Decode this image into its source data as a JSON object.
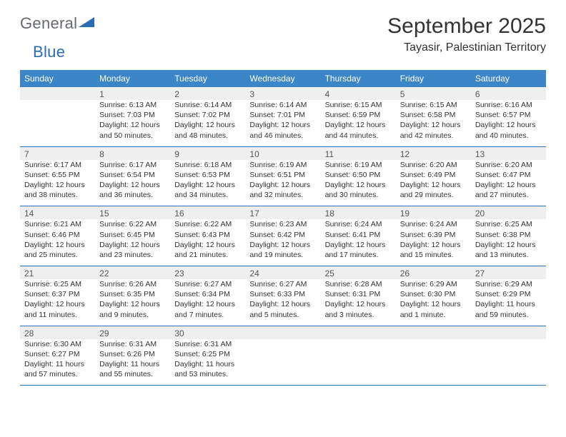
{
  "logo": {
    "part1": "General",
    "part2": "Blue"
  },
  "title": "September 2025",
  "location": "Tayasir, Palestinian Territory",
  "header_bg": "#3b86c7",
  "divider_color": "#2a6db5",
  "shaded_bg": "#efefef",
  "day_names": [
    "Sunday",
    "Monday",
    "Tuesday",
    "Wednesday",
    "Thursday",
    "Friday",
    "Saturday"
  ],
  "weeks": [
    [
      {
        "n": "",
        "sr": "",
        "ss": "",
        "dl": ""
      },
      {
        "n": "1",
        "sr": "6:13 AM",
        "ss": "7:03 PM",
        "dl": "12 hours and 50 minutes."
      },
      {
        "n": "2",
        "sr": "6:14 AM",
        "ss": "7:02 PM",
        "dl": "12 hours and 48 minutes."
      },
      {
        "n": "3",
        "sr": "6:14 AM",
        "ss": "7:01 PM",
        "dl": "12 hours and 46 minutes."
      },
      {
        "n": "4",
        "sr": "6:15 AM",
        "ss": "6:59 PM",
        "dl": "12 hours and 44 minutes."
      },
      {
        "n": "5",
        "sr": "6:15 AM",
        "ss": "6:58 PM",
        "dl": "12 hours and 42 minutes."
      },
      {
        "n": "6",
        "sr": "6:16 AM",
        "ss": "6:57 PM",
        "dl": "12 hours and 40 minutes."
      }
    ],
    [
      {
        "n": "7",
        "sr": "6:17 AM",
        "ss": "6:55 PM",
        "dl": "12 hours and 38 minutes."
      },
      {
        "n": "8",
        "sr": "6:17 AM",
        "ss": "6:54 PM",
        "dl": "12 hours and 36 minutes."
      },
      {
        "n": "9",
        "sr": "6:18 AM",
        "ss": "6:53 PM",
        "dl": "12 hours and 34 minutes."
      },
      {
        "n": "10",
        "sr": "6:19 AM",
        "ss": "6:51 PM",
        "dl": "12 hours and 32 minutes."
      },
      {
        "n": "11",
        "sr": "6:19 AM",
        "ss": "6:50 PM",
        "dl": "12 hours and 30 minutes."
      },
      {
        "n": "12",
        "sr": "6:20 AM",
        "ss": "6:49 PM",
        "dl": "12 hours and 29 minutes."
      },
      {
        "n": "13",
        "sr": "6:20 AM",
        "ss": "6:47 PM",
        "dl": "12 hours and 27 minutes."
      }
    ],
    [
      {
        "n": "14",
        "sr": "6:21 AM",
        "ss": "6:46 PM",
        "dl": "12 hours and 25 minutes."
      },
      {
        "n": "15",
        "sr": "6:22 AM",
        "ss": "6:45 PM",
        "dl": "12 hours and 23 minutes."
      },
      {
        "n": "16",
        "sr": "6:22 AM",
        "ss": "6:43 PM",
        "dl": "12 hours and 21 minutes."
      },
      {
        "n": "17",
        "sr": "6:23 AM",
        "ss": "6:42 PM",
        "dl": "12 hours and 19 minutes."
      },
      {
        "n": "18",
        "sr": "6:24 AM",
        "ss": "6:41 PM",
        "dl": "12 hours and 17 minutes."
      },
      {
        "n": "19",
        "sr": "6:24 AM",
        "ss": "6:39 PM",
        "dl": "12 hours and 15 minutes."
      },
      {
        "n": "20",
        "sr": "6:25 AM",
        "ss": "6:38 PM",
        "dl": "12 hours and 13 minutes."
      }
    ],
    [
      {
        "n": "21",
        "sr": "6:25 AM",
        "ss": "6:37 PM",
        "dl": "12 hours and 11 minutes."
      },
      {
        "n": "22",
        "sr": "6:26 AM",
        "ss": "6:35 PM",
        "dl": "12 hours and 9 minutes."
      },
      {
        "n": "23",
        "sr": "6:27 AM",
        "ss": "6:34 PM",
        "dl": "12 hours and 7 minutes."
      },
      {
        "n": "24",
        "sr": "6:27 AM",
        "ss": "6:33 PM",
        "dl": "12 hours and 5 minutes."
      },
      {
        "n": "25",
        "sr": "6:28 AM",
        "ss": "6:31 PM",
        "dl": "12 hours and 3 minutes."
      },
      {
        "n": "26",
        "sr": "6:29 AM",
        "ss": "6:30 PM",
        "dl": "12 hours and 1 minute."
      },
      {
        "n": "27",
        "sr": "6:29 AM",
        "ss": "6:29 PM",
        "dl": "11 hours and 59 minutes."
      }
    ],
    [
      {
        "n": "28",
        "sr": "6:30 AM",
        "ss": "6:27 PM",
        "dl": "11 hours and 57 minutes."
      },
      {
        "n": "29",
        "sr": "6:31 AM",
        "ss": "6:26 PM",
        "dl": "11 hours and 55 minutes."
      },
      {
        "n": "30",
        "sr": "6:31 AM",
        "ss": "6:25 PM",
        "dl": "11 hours and 53 minutes."
      },
      {
        "n": "",
        "sr": "",
        "ss": "",
        "dl": ""
      },
      {
        "n": "",
        "sr": "",
        "ss": "",
        "dl": ""
      },
      {
        "n": "",
        "sr": "",
        "ss": "",
        "dl": ""
      },
      {
        "n": "",
        "sr": "",
        "ss": "",
        "dl": ""
      }
    ]
  ],
  "labels": {
    "sunrise": "Sunrise:",
    "sunset": "Sunset:",
    "daylight": "Daylight:"
  }
}
